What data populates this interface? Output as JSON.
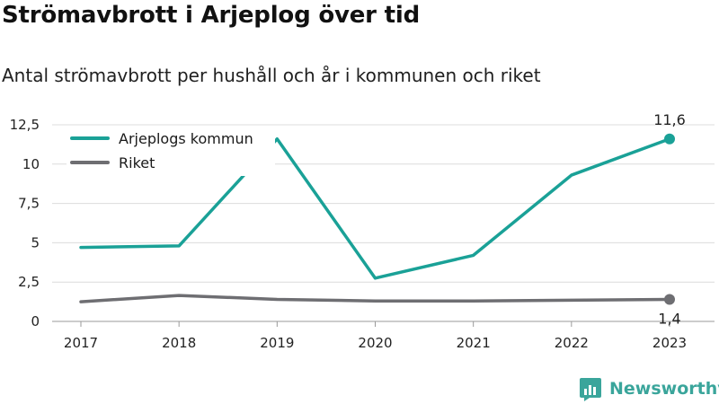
{
  "header": {
    "title": "Strömavbrott i Arjeplog över tid",
    "subtitle": "Antal strömavbrott per hushåll och år i kommunen och riket"
  },
  "brand": {
    "name": "Newsworthy",
    "icon": "newsworthy-logo-icon",
    "color": "#3aa59b"
  },
  "chart_data": {
    "type": "line",
    "x": [
      "2017",
      "2018",
      "2019",
      "2020",
      "2021",
      "2022",
      "2023"
    ],
    "yticks": [
      "0",
      "2,5",
      "5",
      "7,5",
      "10",
      "12,5"
    ],
    "ylim": [
      0,
      12.5
    ],
    "grid": true,
    "legend_position": "top-left",
    "series": [
      {
        "name": "Arjeplogs kommun",
        "color": "#1aa197",
        "values": [
          4.7,
          4.8,
          11.6,
          2.75,
          4.2,
          9.3,
          11.6
        ],
        "end_label": "11,6"
      },
      {
        "name": "Riket",
        "color": "#6e6e72",
        "values": [
          1.25,
          1.65,
          1.4,
          1.3,
          1.3,
          1.35,
          1.4
        ],
        "end_label": "1,4"
      }
    ]
  }
}
